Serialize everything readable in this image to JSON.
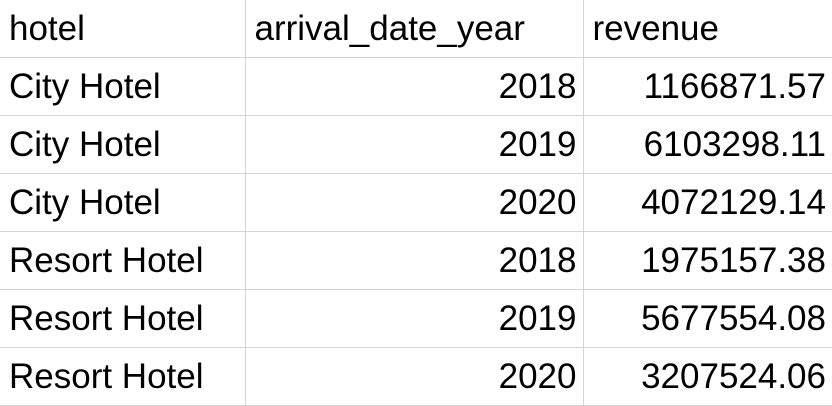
{
  "sheet": {
    "columns": [
      "hotel",
      "arrival_date_year",
      "revenue"
    ],
    "rows": [
      {
        "hotel": "City Hotel",
        "arrival_date_year": "2018",
        "revenue": "1166871.57"
      },
      {
        "hotel": "City Hotel",
        "arrival_date_year": "2019",
        "revenue": "6103298.11"
      },
      {
        "hotel": "City Hotel",
        "arrival_date_year": "2020",
        "revenue": "4072129.14"
      },
      {
        "hotel": "Resort Hotel",
        "arrival_date_year": "2018",
        "revenue": "1975157.38"
      },
      {
        "hotel": "Resort Hotel",
        "arrival_date_year": "2019",
        "revenue": "5677554.08"
      },
      {
        "hotel": "Resort Hotel",
        "arrival_date_year": "2020",
        "revenue": "3207524.06"
      }
    ]
  }
}
